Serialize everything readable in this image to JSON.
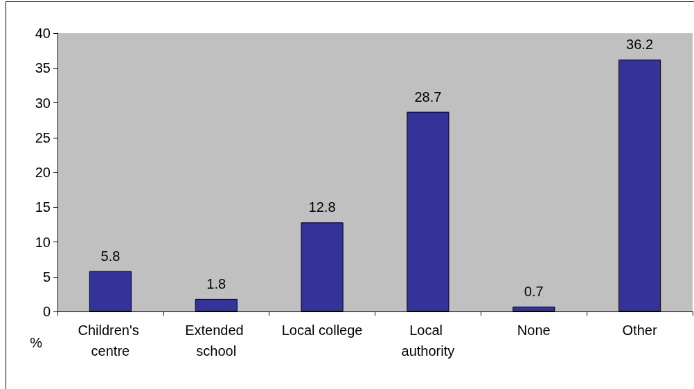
{
  "chart_data": {
    "type": "bar",
    "ylabel": "%",
    "categories": [
      "Children's centre",
      "Extended school",
      "Local college",
      "Local authority",
      "None",
      "Other"
    ],
    "values": [
      5.8,
      1.8,
      12.8,
      28.7,
      0.7,
      36.2
    ],
    "color": "#333399",
    "ylim": [
      0,
      40
    ],
    "yticks": [
      0,
      5,
      10,
      15,
      20,
      25,
      30,
      35,
      40
    ],
    "grid": false,
    "data_labels": true
  }
}
